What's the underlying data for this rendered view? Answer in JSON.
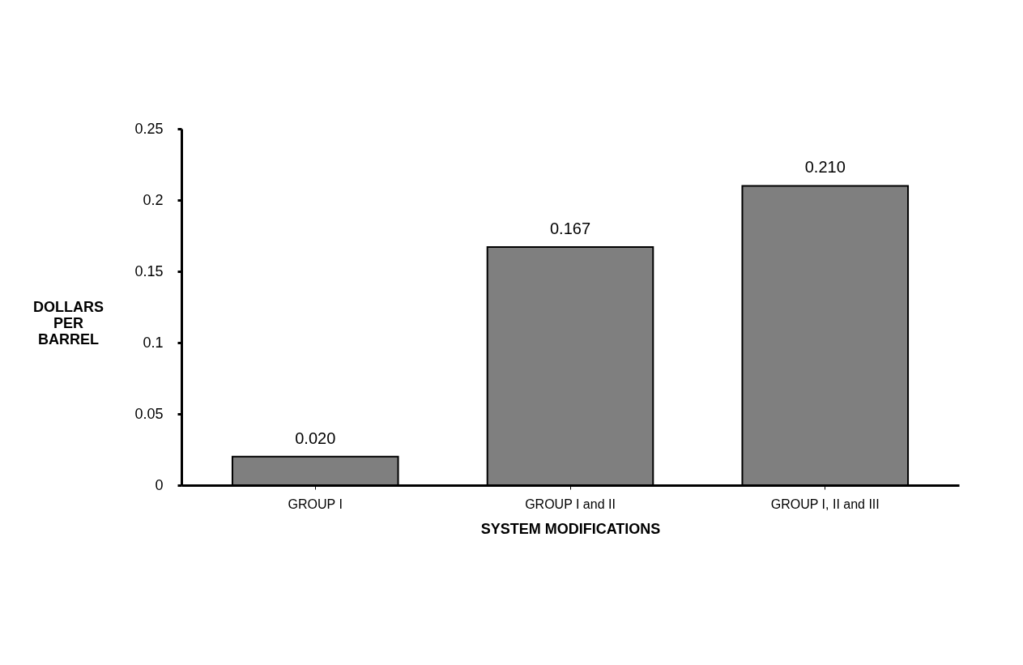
{
  "chart_data": {
    "type": "bar",
    "categories": [
      "GROUP I",
      "GROUP I and II",
      "GROUP I, II and III"
    ],
    "values": [
      0.02,
      0.167,
      0.21
    ],
    "value_labels": [
      "0.020",
      "0.167",
      "0.210"
    ],
    "color": "#7f7f7f",
    "xlabel": "SYSTEM MODIFICATIONS",
    "ylabel": "DOLLARS PER BARREL",
    "ylim": [
      0,
      0.25
    ],
    "yticks": [
      0,
      0.05,
      0.1,
      0.15,
      0.2,
      0.25
    ],
    "grid": false
  }
}
